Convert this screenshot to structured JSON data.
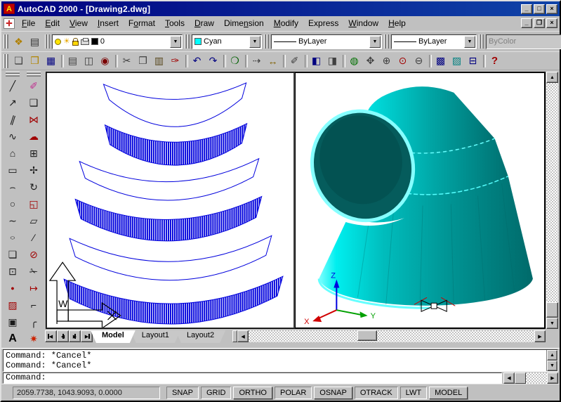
{
  "titlebar": {
    "title": "AutoCAD 2000 - [Drawing2.dwg]",
    "buttons": [
      {
        "name": "minimize-button",
        "glyph": "_"
      },
      {
        "name": "maximize-button",
        "glyph": "□"
      },
      {
        "name": "close-button",
        "glyph": "×"
      }
    ]
  },
  "menubar": {
    "items": [
      {
        "name": "menu-file",
        "label": "File",
        "u": 0
      },
      {
        "name": "menu-edit",
        "label": "Edit",
        "u": 0
      },
      {
        "name": "menu-view",
        "label": "View",
        "u": 0
      },
      {
        "name": "menu-insert",
        "label": "Insert",
        "u": 0
      },
      {
        "name": "menu-format",
        "label": "Format",
        "u": 1
      },
      {
        "name": "menu-tools",
        "label": "Tools",
        "u": 0
      },
      {
        "name": "menu-draw",
        "label": "Draw",
        "u": 0
      },
      {
        "name": "menu-dimension",
        "label": "Dimension",
        "u": 4
      },
      {
        "name": "menu-modify",
        "label": "Modify",
        "u": 0
      },
      {
        "name": "menu-express",
        "label": "Express",
        "u": -1
      },
      {
        "name": "menu-window",
        "label": "Window",
        "u": 0
      },
      {
        "name": "menu-help",
        "label": "Help",
        "u": 0
      }
    ],
    "mdi_buttons": [
      {
        "name": "mdi-minimize-button",
        "glyph": "_"
      },
      {
        "name": "mdi-restore-button",
        "glyph": "❐"
      },
      {
        "name": "mdi-close-button",
        "glyph": "×"
      }
    ]
  },
  "object_toolbar": {
    "layer_buttons": [
      {
        "name": "make-object-layer-current-button",
        "glyph": "❖",
        "color": "#b08000"
      },
      {
        "name": "layers-button",
        "glyph": "▤",
        "color": "#303030"
      }
    ],
    "layer_combo": {
      "value": "0"
    },
    "color_combo": {
      "value": "Cyan",
      "swatch": "#00ffff"
    },
    "linetype_combo": {
      "value": "ByLayer"
    },
    "lineweight_combo": {
      "value": "ByLayer"
    },
    "plotstyle_combo": {
      "value": "ByColor"
    }
  },
  "standard_toolbar": {
    "buttons": [
      {
        "name": "new-button",
        "glyph": "❏",
        "color": "#404040"
      },
      {
        "name": "open-button",
        "glyph": "❒",
        "color": "#b08500"
      },
      {
        "name": "save-button",
        "glyph": "▦",
        "color": "#000080"
      },
      {
        "name": "print-button",
        "glyph": "▤",
        "color": "#404040",
        "divider": true
      },
      {
        "name": "print-preview-button",
        "glyph": "◫",
        "color": "#404040"
      },
      {
        "name": "find-button",
        "glyph": "◉",
        "color": "#7a0000"
      },
      {
        "name": "cut-button",
        "glyph": "✂",
        "color": "#404040",
        "divider": true
      },
      {
        "name": "copy-button",
        "glyph": "❐",
        "color": "#404040"
      },
      {
        "name": "paste-button",
        "glyph": "▥",
        "color": "#5a4a20"
      },
      {
        "name": "match-properties-button",
        "glyph": "✑",
        "color": "#a00000"
      },
      {
        "name": "undo-button",
        "glyph": "↶",
        "color": "#000080",
        "divider": true
      },
      {
        "name": "redo-button",
        "glyph": "↷",
        "color": "#000080"
      },
      {
        "name": "insert-hyperlink-button",
        "glyph": "❍",
        "color": "#006000",
        "divider": true
      },
      {
        "name": "tracking-point-button",
        "glyph": "⇢",
        "color": "#404040",
        "divider": true
      },
      {
        "name": "distance-button",
        "glyph": "↔",
        "color": "#806000"
      },
      {
        "name": "quick-select-button",
        "glyph": "✐",
        "color": "#404040",
        "divider": true
      },
      {
        "name": "viewports-button",
        "glyph": "◧",
        "color": "#000080",
        "divider": true
      },
      {
        "name": "named-views-button",
        "glyph": "◨",
        "color": "#404040"
      },
      {
        "name": "orbit-3d-button",
        "glyph": "◍",
        "color": "#007000",
        "divider": true
      },
      {
        "name": "pan-realtime-button",
        "glyph": "✥",
        "color": "#404040"
      },
      {
        "name": "zoom-realtime-button",
        "glyph": "⊕",
        "color": "#404040"
      },
      {
        "name": "zoom-window-button",
        "glyph": "⊙",
        "color": "#a00000"
      },
      {
        "name": "zoom-previous-button",
        "glyph": "⊖",
        "color": "#404040"
      },
      {
        "name": "designcenter-button",
        "glyph": "▩",
        "color": "#000080",
        "divider": true
      },
      {
        "name": "properties-button",
        "glyph": "▨",
        "color": "#008080"
      },
      {
        "name": "dbconnect-button",
        "glyph": "⊟",
        "color": "#000080"
      },
      {
        "name": "help-button",
        "glyph": "?",
        "color": "#a00000",
        "cls": "bold",
        "divider": true
      }
    ]
  },
  "draw_toolbar": {
    "buttons": [
      {
        "name": "line-tool",
        "glyph": "╱",
        "color": "#1a1a1a"
      },
      {
        "name": "construction-line-tool",
        "glyph": "↗",
        "color": "#1a1a1a"
      },
      {
        "name": "multiline-tool",
        "glyph": "∥",
        "color": "#1a1a1a",
        "cls": "slant"
      },
      {
        "name": "polyline-tool",
        "glyph": "∿",
        "color": "#1a1a1a"
      },
      {
        "name": "polygon-tool",
        "glyph": "⌂",
        "color": "#1a1a1a"
      },
      {
        "name": "rectangle-tool",
        "glyph": "▭",
        "color": "#1a1a1a"
      },
      {
        "name": "arc-tool",
        "glyph": "⌢",
        "color": "#1a1a1a"
      },
      {
        "name": "circle-tool",
        "glyph": "○",
        "color": "#1a1a1a"
      },
      {
        "name": "spline-tool",
        "glyph": "∼",
        "color": "#1a1a1a"
      },
      {
        "name": "ellipse-tool",
        "glyph": "○",
        "color": "#1a1a1a",
        "cls": "squash"
      },
      {
        "name": "insert-block-tool",
        "glyph": "❏",
        "color": "#1a1a1a"
      },
      {
        "name": "make-block-tool",
        "glyph": "⊡",
        "color": "#1a1a1a"
      },
      {
        "name": "point-tool",
        "glyph": "●",
        "color": "#a00000",
        "cls": "small"
      },
      {
        "name": "hatch-tool",
        "glyph": "▨",
        "color": "#a00000"
      },
      {
        "name": "region-tool",
        "glyph": "▣",
        "color": "#1a1a1a"
      },
      {
        "name": "text-tool",
        "glyph": "A",
        "color": "#000000",
        "cls": "serif"
      }
    ]
  },
  "modify_toolbar": {
    "buttons": [
      {
        "name": "erase-tool",
        "glyph": "✐",
        "color": "#c03090"
      },
      {
        "name": "copy-object-tool",
        "glyph": "❑",
        "color": "#1a1a1a"
      },
      {
        "name": "mirror-tool",
        "glyph": "⋈",
        "color": "#a00000"
      },
      {
        "name": "offset-tool",
        "glyph": "☁",
        "color": "#a00000"
      },
      {
        "name": "array-tool",
        "glyph": "⊞",
        "color": "#1a1a1a"
      },
      {
        "name": "move-tool",
        "glyph": "✢",
        "color": "#1a1a1a"
      },
      {
        "name": "rotate-tool",
        "glyph": "↻",
        "color": "#1a1a1a"
      },
      {
        "name": "scale-tool",
        "glyph": "◱",
        "color": "#a00000"
      },
      {
        "name": "stretch-tool",
        "glyph": "▱",
        "color": "#1a1a1a"
      },
      {
        "name": "lengthen-tool",
        "glyph": "∕",
        "color": "#1a1a1a"
      },
      {
        "name": "break-tool",
        "glyph": "⊘",
        "color": "#a00000"
      },
      {
        "name": "trim-tool",
        "glyph": "✁",
        "color": "#1a1a1a"
      },
      {
        "name": "extend-tool",
        "glyph": "↦",
        "color": "#a00000"
      },
      {
        "name": "chamfer-tool",
        "glyph": "⌐",
        "color": "#1a1a1a"
      },
      {
        "name": "fillet-tool",
        "glyph": "╭",
        "color": "#1a1a1a"
      },
      {
        "name": "explode-tool",
        "glyph": "✷",
        "color": "#cc2200"
      }
    ]
  },
  "layout_tabs": {
    "nav": [
      {
        "name": "tab-first-button",
        "glyph": "◀",
        "cls": "bar-l"
      },
      {
        "name": "tab-prev-button",
        "glyph": "◀"
      },
      {
        "name": "tab-next-button",
        "glyph": "▶"
      },
      {
        "name": "tab-last-button",
        "glyph": "▶",
        "cls": "bar-r"
      }
    ],
    "tabs": [
      {
        "name": "model-tab",
        "label": "Model",
        "active": true
      },
      {
        "name": "layout1-tab",
        "label": "Layout1"
      },
      {
        "name": "layout2-tab",
        "label": "Layout2"
      }
    ]
  },
  "command": {
    "history": [
      "Command: *Cancel*",
      "Command: *Cancel*"
    ],
    "prompt": "Command:"
  },
  "statusbar": {
    "coords": "2059.7738, 1043.9093, 0.0000",
    "toggles": [
      {
        "name": "snap-toggle",
        "label": "SNAP",
        "pressed": true
      },
      {
        "name": "grid-toggle",
        "label": "GRID",
        "pressed": true
      },
      {
        "name": "ortho-toggle",
        "label": "ORTHO"
      },
      {
        "name": "polar-toggle",
        "label": "POLAR",
        "pressed": true
      },
      {
        "name": "osnap-toggle",
        "label": "OSNAP"
      },
      {
        "name": "otrack-toggle",
        "label": "OTRACK",
        "pressed": true
      },
      {
        "name": "lwt-toggle",
        "label": "LWT",
        "pressed": true
      },
      {
        "name": "model-toggle",
        "label": "MODEL"
      }
    ]
  },
  "colors": {
    "titlebar": "#000080",
    "chrome": "#c0c0c0",
    "drawing_blue": "#0000dd",
    "cyan": "#00ffff",
    "teal": "#008080"
  }
}
